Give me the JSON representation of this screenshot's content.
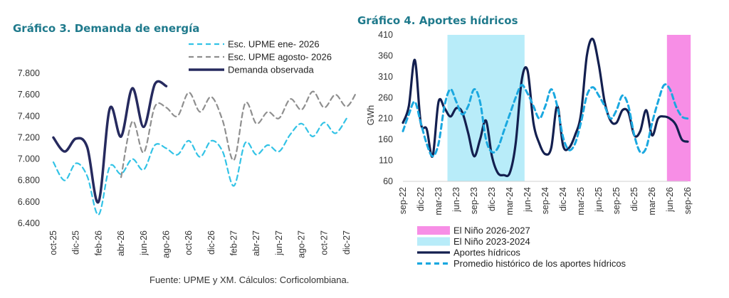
{
  "source": "Fuente: UPME y XM. Cálculos: Corficolombiana.",
  "chart_data": [
    {
      "type": "line",
      "title": "Gráfico 3. Demanda de energía",
      "xlabel": "",
      "ylabel": "",
      "ylim": [
        6400,
        7800
      ],
      "yticks": [
        6400,
        6600,
        6800,
        7000,
        7200,
        7400,
        7600,
        7800
      ],
      "ytick_labels": [
        "6.400",
        "6.600",
        "6.800",
        "7.000",
        "7.200",
        "7.400",
        "7.600",
        "7.800"
      ],
      "x_start": "2025-10",
      "x_count": 27,
      "xtick_labels": [
        "oct-25",
        "dic-25",
        "feb-26",
        "abr-26",
        "jun-26",
        "ago-26",
        "oct-26",
        "dic-26",
        "feb-27",
        "abr-27",
        "jun-27",
        "ago-27",
        "oct-27",
        "dic-27"
      ],
      "legend_position": "top",
      "series": [
        {
          "name": "Esc. UPME ene- 2026",
          "color": "#33c3e6",
          "style": "dashed",
          "values": [
            6970,
            6800,
            6960,
            6840,
            6480,
            6930,
            6860,
            7000,
            6900,
            7130,
            7100,
            7040,
            7170,
            7020,
            7170,
            7070,
            6750,
            7150,
            7040,
            7130,
            7070,
            7230,
            7330,
            7210,
            7340,
            7240,
            7380
          ]
        },
        {
          "name": "Esc. UPME agosto- 2026",
          "color": "#8f8f8f",
          "style": "dashed",
          "start_index": 6,
          "values": [
            6830,
            7350,
            7060,
            7490,
            7480,
            7400,
            7620,
            7440,
            7580,
            7360,
            6990,
            7520,
            7330,
            7440,
            7380,
            7560,
            7460,
            7630,
            7480,
            7600,
            7490,
            7650
          ]
        },
        {
          "name": "Demanda observada",
          "color": "#262a5e",
          "style": "solid",
          "values": [
            7200,
            7070,
            7190,
            7110,
            6600,
            7470,
            7210,
            7660,
            7300,
            7700,
            7680
          ]
        }
      ]
    },
    {
      "type": "line",
      "title": "Gráfico 4. Aportes hídricos",
      "xlabel": "",
      "ylabel": "GWh",
      "ylim": [
        60,
        410
      ],
      "yticks": [
        60,
        110,
        160,
        210,
        260,
        310,
        360,
        410
      ],
      "ytick_labels": [
        "60",
        "110",
        "160",
        "210",
        "260",
        "310",
        "360",
        "410"
      ],
      "x_start": "2022-09",
      "x_count": 49,
      "xtick_labels": [
        "sep-22",
        "dic-22",
        "mar-23",
        "jun-23",
        "sep-23",
        "dic-23",
        "mar-24",
        "jun-24",
        "sep-24",
        "dic-24",
        "mar-25",
        "jun-25",
        "sep-25",
        "dic-25",
        "mar-26",
        "jun-26",
        "sep-26"
      ],
      "legend_position": "bottom",
      "shaded_periods": [
        {
          "name": "El Niño 2026-2027",
          "color": "#f78ee6",
          "from_index": 45,
          "to_index": 48
        },
        {
          "name": "El Niño 2023-2024",
          "color": "#b8ecf9",
          "from_index": 8,
          "to_index": 20
        }
      ],
      "series": [
        {
          "name": "Aportes hídricos",
          "color": "#131f4f",
          "style": "solid",
          "values": [
            200,
            240,
            350,
            200,
            185,
            120,
            250,
            235,
            215,
            235,
            225,
            175,
            120,
            160,
            205,
            120,
            80,
            75,
            80,
            150,
            300,
            325,
            200,
            150,
            125,
            140,
            240,
            145,
            140,
            170,
            220,
            360,
            400,
            340,
            250,
            205,
            200,
            230,
            225,
            170,
            180,
            230,
            170,
            210,
            215,
            210,
            195,
            160,
            155
          ]
        },
        {
          "name": "Promedio histórico de los aportes hídricos",
          "color": "#1aa8e0",
          "style": "dashed",
          "values": [
            180,
            220,
            250,
            200,
            150,
            120,
            150,
            240,
            280,
            250,
            220,
            240,
            280,
            250,
            160,
            130,
            140,
            180,
            220,
            260,
            290,
            270,
            240,
            210,
            240,
            280,
            240,
            165,
            135,
            150,
            200,
            265,
            285,
            265,
            240,
            210,
            230,
            265,
            240,
            170,
            130,
            140,
            200,
            250,
            290,
            280,
            240,
            215,
            210
          ]
        }
      ]
    }
  ]
}
